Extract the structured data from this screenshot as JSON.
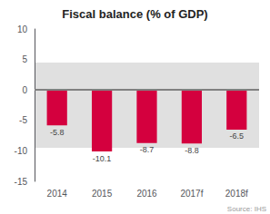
{
  "chart_data": {
    "type": "bar",
    "title": "Fiscal balance (% of GDP)",
    "categories": [
      "2014",
      "2015",
      "2016",
      "2017f",
      "2018f"
    ],
    "values": [
      -5.8,
      -10.1,
      -8.7,
      -8.8,
      -6.5
    ],
    "color": "#d4003e",
    "ylim": [
      -15,
      10
    ],
    "yticks": [
      -15,
      -10,
      -5,
      0,
      5,
      10
    ],
    "grid": false,
    "data_labels": true,
    "band": {
      "ymin": -9.5,
      "ymax": 4.5,
      "color": "#e0e0e0"
    },
    "zero_line": {
      "value": 0,
      "color": "#808080"
    },
    "annotations": [
      "Source: IHS"
    ]
  }
}
